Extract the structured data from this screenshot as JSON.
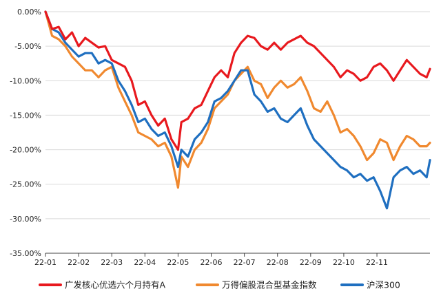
{
  "chart_data": {
    "type": "line",
    "title": "",
    "xlabel": "",
    "ylabel": "",
    "ylim": [
      -35,
      0
    ],
    "y_ticks": [
      "0.00%",
      "-5.00%",
      "-10.00%",
      "-15.00%",
      "-20.00%",
      "-25.00%",
      "-30.00%",
      "-35.00%"
    ],
    "x_range": [
      0,
      11.6
    ],
    "x_ticks": [
      "22-01",
      "22-02",
      "22-03",
      "22-04",
      "22-05",
      "22-06",
      "22-07",
      "22-08",
      "22-09",
      "22-10",
      "22-11"
    ],
    "grid": "horizontal",
    "legend_position": "bottom",
    "series": [
      {
        "name": "广发核心优选六个月持有A",
        "color": "#e8191e",
        "x": [
          0,
          0.2,
          0.4,
          0.6,
          0.8,
          1.0,
          1.2,
          1.4,
          1.6,
          1.8,
          2.0,
          2.2,
          2.4,
          2.6,
          2.8,
          3.0,
          3.2,
          3.4,
          3.6,
          3.8,
          4.0,
          4.1,
          4.3,
          4.5,
          4.7,
          4.9,
          5.1,
          5.3,
          5.5,
          5.7,
          5.9,
          6.1,
          6.3,
          6.5,
          6.7,
          6.9,
          7.1,
          7.3,
          7.5,
          7.7,
          7.9,
          8.1,
          8.3,
          8.5,
          8.7,
          8.9,
          9.1,
          9.3,
          9.5,
          9.7,
          9.9,
          10.1,
          10.3,
          10.5,
          10.7,
          10.9,
          11.1,
          11.3,
          11.5,
          11.6
        ],
        "y": [
          0,
          -2.5,
          -2.2,
          -4.0,
          -3.0,
          -5.0,
          -3.8,
          -4.5,
          -5.2,
          -5.0,
          -7.0,
          -7.5,
          -8.0,
          -10.0,
          -13.5,
          -13.0,
          -15.0,
          -16.5,
          -15.5,
          -18.5,
          -20.0,
          -16.0,
          -15.5,
          -14.0,
          -13.5,
          -11.5,
          -9.5,
          -8.5,
          -9.5,
          -6.0,
          -4.5,
          -3.5,
          -3.8,
          -5.0,
          -5.5,
          -4.5,
          -5.5,
          -4.5,
          -4.0,
          -3.5,
          -4.5,
          -5.0,
          -6.0,
          -7.0,
          -8.0,
          -9.5,
          -8.5,
          -9.0,
          -10.0,
          -9.5,
          -8.0,
          -7.5,
          -8.5,
          -10.0,
          -8.5,
          -7.0,
          -8.0,
          -9.0,
          -9.5,
          -8.3
        ]
      },
      {
        "name": "万得偏股混合型基金指数",
        "color": "#f0892f",
        "x": [
          0,
          0.2,
          0.4,
          0.6,
          0.8,
          1.0,
          1.2,
          1.4,
          1.6,
          1.8,
          2.0,
          2.2,
          2.4,
          2.6,
          2.8,
          3.0,
          3.2,
          3.4,
          3.6,
          3.8,
          4.0,
          4.1,
          4.3,
          4.5,
          4.7,
          4.9,
          5.1,
          5.3,
          5.5,
          5.7,
          5.9,
          6.1,
          6.3,
          6.5,
          6.7,
          6.9,
          7.1,
          7.3,
          7.5,
          7.7,
          7.9,
          8.1,
          8.3,
          8.5,
          8.7,
          8.9,
          9.1,
          9.3,
          9.5,
          9.7,
          9.9,
          10.1,
          10.3,
          10.5,
          10.7,
          10.9,
          11.1,
          11.3,
          11.5,
          11.6
        ],
        "y": [
          0,
          -3.5,
          -4.0,
          -5.0,
          -6.5,
          -7.5,
          -8.5,
          -8.5,
          -9.5,
          -8.5,
          -8.0,
          -11.0,
          -13.0,
          -15.0,
          -17.5,
          -18.0,
          -18.5,
          -19.5,
          -19.0,
          -21.0,
          -25.5,
          -21.0,
          -22.5,
          -20.0,
          -19.0,
          -17.0,
          -14.0,
          -13.0,
          -12.0,
          -10.0,
          -9.0,
          -8.0,
          -10.0,
          -10.5,
          -12.5,
          -11.0,
          -10.0,
          -11.0,
          -10.5,
          -9.5,
          -11.5,
          -14.0,
          -14.5,
          -13.0,
          -15.0,
          -17.5,
          -17.0,
          -18.0,
          -19.5,
          -21.5,
          -20.5,
          -18.5,
          -19.0,
          -21.5,
          -19.5,
          -18.0,
          -18.5,
          -19.5,
          -19.5,
          -19.0
        ]
      },
      {
        "name": "沪深300",
        "color": "#1f6fc0",
        "x": [
          0,
          0.2,
          0.4,
          0.6,
          0.8,
          1.0,
          1.2,
          1.4,
          1.6,
          1.8,
          2.0,
          2.2,
          2.4,
          2.6,
          2.8,
          3.0,
          3.2,
          3.4,
          3.6,
          3.8,
          4.0,
          4.1,
          4.3,
          4.5,
          4.7,
          4.9,
          5.1,
          5.3,
          5.5,
          5.7,
          5.9,
          6.1,
          6.3,
          6.5,
          6.7,
          6.9,
          7.1,
          7.3,
          7.5,
          7.7,
          7.9,
          8.1,
          8.3,
          8.5,
          8.7,
          8.9,
          9.1,
          9.3,
          9.5,
          9.7,
          9.9,
          10.1,
          10.3,
          10.5,
          10.7,
          10.9,
          11.1,
          11.3,
          11.5,
          11.6
        ],
        "y": [
          0,
          -2.5,
          -3.0,
          -4.5,
          -5.5,
          -6.5,
          -6.0,
          -6.0,
          -7.5,
          -7.0,
          -7.5,
          -10.0,
          -11.5,
          -13.5,
          -16.0,
          -15.5,
          -17.0,
          -18.0,
          -17.5,
          -19.5,
          -22.5,
          -20.0,
          -21.0,
          -18.5,
          -17.5,
          -16.0,
          -13.0,
          -12.5,
          -11.5,
          -10.0,
          -8.5,
          -8.5,
          -12.0,
          -13.0,
          -14.5,
          -14.0,
          -15.5,
          -16.0,
          -15.0,
          -14.0,
          -16.5,
          -18.5,
          -19.5,
          -20.5,
          -21.5,
          -22.5,
          -23.0,
          -24.0,
          -23.5,
          -24.5,
          -24.0,
          -26.0,
          -28.5,
          -24.0,
          -23.0,
          -22.5,
          -23.5,
          -23.0,
          -24.0,
          -21.5
        ]
      }
    ]
  }
}
